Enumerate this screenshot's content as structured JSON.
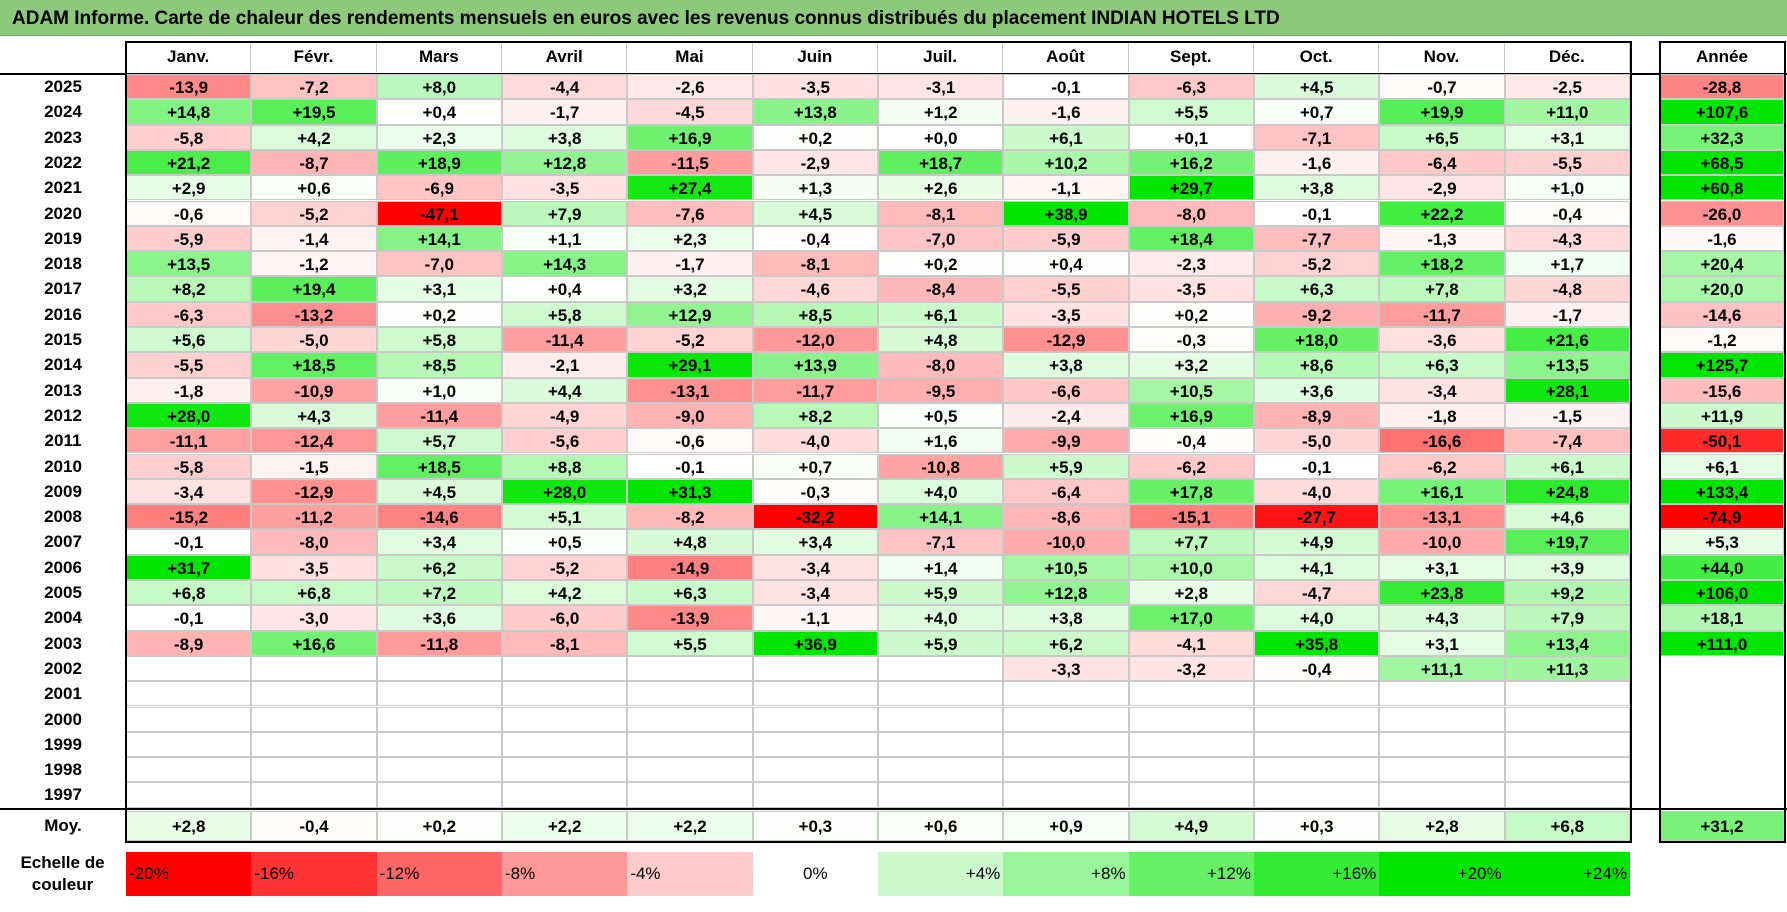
{
  "title": "ADAM Informe. Carte de chaleur des rendements mensuels en euros avec les revenus connus distribués du placement INDIAN HOTELS LTD",
  "colors": {
    "title_bg": "#8cc97b",
    "max_red": "#ff0000",
    "max_green": "#00e600",
    "neutral": "#ffffff"
  },
  "chart_data": {
    "type": "heatmap",
    "title": "ADAM Informe. Carte de chaleur des rendements mensuels en euros avec les revenus connus distribués du placement INDIAN HOTELS LTD",
    "months": [
      "Janv.",
      "Févr.",
      "Mars",
      "Avril",
      "Mai",
      "Juin",
      "Juil.",
      "Août",
      "Sept.",
      "Oct.",
      "Nov.",
      "Déc."
    ],
    "year_header": "Année",
    "years": [
      "2025",
      "2024",
      "2023",
      "2022",
      "2021",
      "2020",
      "2019",
      "2018",
      "2017",
      "2016",
      "2015",
      "2014",
      "2013",
      "2012",
      "2011",
      "2010",
      "2009",
      "2008",
      "2007",
      "2006",
      "2005",
      "2004",
      "2003",
      "2002",
      "2001",
      "2000",
      "1999",
      "1998",
      "1997"
    ],
    "values": [
      [
        "-13,9",
        "-7,2",
        "+8,0",
        "-4,4",
        "-2,6",
        "-3,5",
        "-3,1",
        "-0,1",
        "-6,3",
        "+4,5",
        "-0,7",
        "-2,5"
      ],
      [
        "+14,8",
        "+19,5",
        "+0,4",
        "-1,7",
        "-4,5",
        "+13,8",
        "+1,2",
        "-1,6",
        "+5,5",
        "+0,7",
        "+19,9",
        "+11,0"
      ],
      [
        "-5,8",
        "+4,2",
        "+2,3",
        "+3,8",
        "+16,9",
        "+0,2",
        "+0,0",
        "+6,1",
        "+0,1",
        "-7,1",
        "+6,5",
        "+3,1"
      ],
      [
        "+21,2",
        "-8,7",
        "+18,9",
        "+12,8",
        "-11,5",
        "-2,9",
        "+18,7",
        "+10,2",
        "+16,2",
        "-1,6",
        "-6,4",
        "-5,5"
      ],
      [
        "+2,9",
        "+0,6",
        "-6,9",
        "-3,5",
        "+27,4",
        "+1,3",
        "+2,6",
        "-1,1",
        "+29,7",
        "+3,8",
        "-2,9",
        "+1,0"
      ],
      [
        "-0,6",
        "-5,2",
        "-47,1",
        "+7,9",
        "-7,6",
        "+4,5",
        "-8,1",
        "+38,9",
        "-8,0",
        "-0,1",
        "+22,2",
        "-0,4"
      ],
      [
        "-5,9",
        "-1,4",
        "+14,1",
        "+1,1",
        "+2,3",
        "-0,4",
        "-7,0",
        "-5,9",
        "+18,4",
        "-7,7",
        "-1,3",
        "-4,3"
      ],
      [
        "+13,5",
        "-1,2",
        "-7,0",
        "+14,3",
        "-1,7",
        "-8,1",
        "+0,2",
        "+0,4",
        "-2,3",
        "-5,2",
        "+18,2",
        "+1,7"
      ],
      [
        "+8,2",
        "+19,4",
        "+3,1",
        "+0,4",
        "+3,2",
        "-4,6",
        "-8,4",
        "-5,5",
        "-3,5",
        "+6,3",
        "+7,8",
        "-4,8"
      ],
      [
        "-6,3",
        "-13,2",
        "+0,2",
        "+5,8",
        "+12,9",
        "+8,5",
        "+6,1",
        "-3,5",
        "+0,2",
        "-9,2",
        "-11,7",
        "-1,7"
      ],
      [
        "+5,6",
        "-5,0",
        "+5,8",
        "-11,4",
        "-5,2",
        "-12,0",
        "+4,8",
        "-12,9",
        "-0,3",
        "+18,0",
        "-3,6",
        "+21,6"
      ],
      [
        "-5,5",
        "+18,5",
        "+8,5",
        "-2,1",
        "+29,1",
        "+13,9",
        "-8,0",
        "+3,8",
        "+3,2",
        "+8,6",
        "+6,3",
        "+13,5"
      ],
      [
        "-1,8",
        "-10,9",
        "+1,0",
        "+4,4",
        "-13,1",
        "-11,7",
        "-9,5",
        "-6,6",
        "+10,5",
        "+3,6",
        "-3,4",
        "+28,1"
      ],
      [
        "+28,0",
        "+4,3",
        "-11,4",
        "-4,9",
        "-9,0",
        "+8,2",
        "+0,5",
        "-2,4",
        "+16,9",
        "-8,9",
        "-1,8",
        "-1,5"
      ],
      [
        "-11,1",
        "-12,4",
        "+5,7",
        "-5,6",
        "-0,6",
        "-4,0",
        "+1,6",
        "-9,9",
        "-0,4",
        "-5,0",
        "-16,6",
        "-7,4"
      ],
      [
        "-5,8",
        "-1,5",
        "+18,5",
        "+8,8",
        "-0,1",
        "+0,7",
        "-10,8",
        "+5,9",
        "-6,2",
        "-0,1",
        "-6,2",
        "+6,1"
      ],
      [
        "-3,4",
        "-12,9",
        "+4,5",
        "+28,0",
        "+31,3",
        "-0,3",
        "+4,0",
        "-6,4",
        "+17,8",
        "-4,0",
        "+16,1",
        "+24,8"
      ],
      [
        "-15,2",
        "-11,2",
        "-14,6",
        "+5,1",
        "-8,2",
        "-32,2",
        "+14,1",
        "-8,6",
        "-15,1",
        "-27,7",
        "-13,1",
        "+4,6"
      ],
      [
        "-0,1",
        "-8,0",
        "+3,4",
        "+0,5",
        "+4,8",
        "+3,4",
        "-7,1",
        "-10,0",
        "+7,7",
        "+4,9",
        "-10,0",
        "+19,7"
      ],
      [
        "+31,7",
        "-3,5",
        "+6,2",
        "-5,2",
        "-14,9",
        "-3,4",
        "+1,4",
        "+10,5",
        "+10,0",
        "+4,1",
        "+3,1",
        "+3,9"
      ],
      [
        "+6,8",
        "+6,8",
        "+7,2",
        "+4,2",
        "+6,3",
        "-3,4",
        "+5,9",
        "+12,8",
        "+2,8",
        "-4,7",
        "+23,8",
        "+9,2"
      ],
      [
        "-0,1",
        "-3,0",
        "+3,6",
        "-6,0",
        "-13,9",
        "-1,1",
        "+4,0",
        "+3,8",
        "+17,0",
        "+4,0",
        "+4,3",
        "+7,9"
      ],
      [
        "-8,9",
        "+16,6",
        "-11,8",
        "-8,1",
        "+5,5",
        "+36,9",
        "+5,9",
        "+6,2",
        "-4,1",
        "+35,8",
        "+3,1",
        "+13,4"
      ],
      [
        "",
        "",
        "",
        "",
        "",
        "",
        "",
        "-3,3",
        "-3,2",
        "-0,4",
        "+11,1",
        "+11,3"
      ],
      [
        "",
        "",
        "",
        "",
        "",
        "",
        "",
        "",
        "",
        "",
        "",
        ""
      ],
      [
        "",
        "",
        "",
        "",
        "",
        "",
        "",
        "",
        "",
        "",
        "",
        ""
      ],
      [
        "",
        "",
        "",
        "",
        "",
        "",
        "",
        "",
        "",
        "",
        "",
        ""
      ],
      [
        "",
        "",
        "",
        "",
        "",
        "",
        "",
        "",
        "",
        "",
        "",
        ""
      ],
      [
        "",
        "",
        "",
        "",
        "",
        "",
        "",
        "",
        "",
        "",
        "",
        ""
      ]
    ],
    "annual": [
      "-28,8",
      "+107,6",
      "+32,3",
      "+68,5",
      "+60,8",
      "-26,0",
      "-1,6",
      "+20,4",
      "+20,0",
      "-14,6",
      "-1,2",
      "+125,7",
      "-15,6",
      "+11,9",
      "-50,1",
      "+6,1",
      "+133,4",
      "-74,9",
      "+5,3",
      "+44,0",
      "+106,0",
      "+18,1",
      "+111,0",
      "",
      "",
      "",
      "",
      "",
      ""
    ],
    "average_label": "Moy.",
    "averages": [
      "+2,8",
      "-0,4",
      "+0,2",
      "+2,2",
      "+2,2",
      "+0,3",
      "+0,6",
      "+0,9",
      "+4,9",
      "+0,3",
      "+2,8",
      "+6,8"
    ],
    "average_annual": "+31,2",
    "scale_label_line1": "Echelle de",
    "scale_label_line2": "couleur",
    "scale": [
      {
        "label": "-20%",
        "value": -20
      },
      {
        "label": "-16%",
        "value": -16
      },
      {
        "label": "-12%",
        "value": -12
      },
      {
        "label": "-8%",
        "value": -8
      },
      {
        "label": "-4%",
        "value": -4
      },
      {
        "label": "0%",
        "value": 0
      },
      {
        "label": "+4%",
        "value": 4
      },
      {
        "label": "+8%",
        "value": 8
      },
      {
        "label": "+12%",
        "value": 12
      },
      {
        "label": "+16%",
        "value": 16
      },
      {
        "label": "+20%",
        "value": 20
      },
      {
        "label": "+24%",
        "value": 24
      }
    ]
  }
}
